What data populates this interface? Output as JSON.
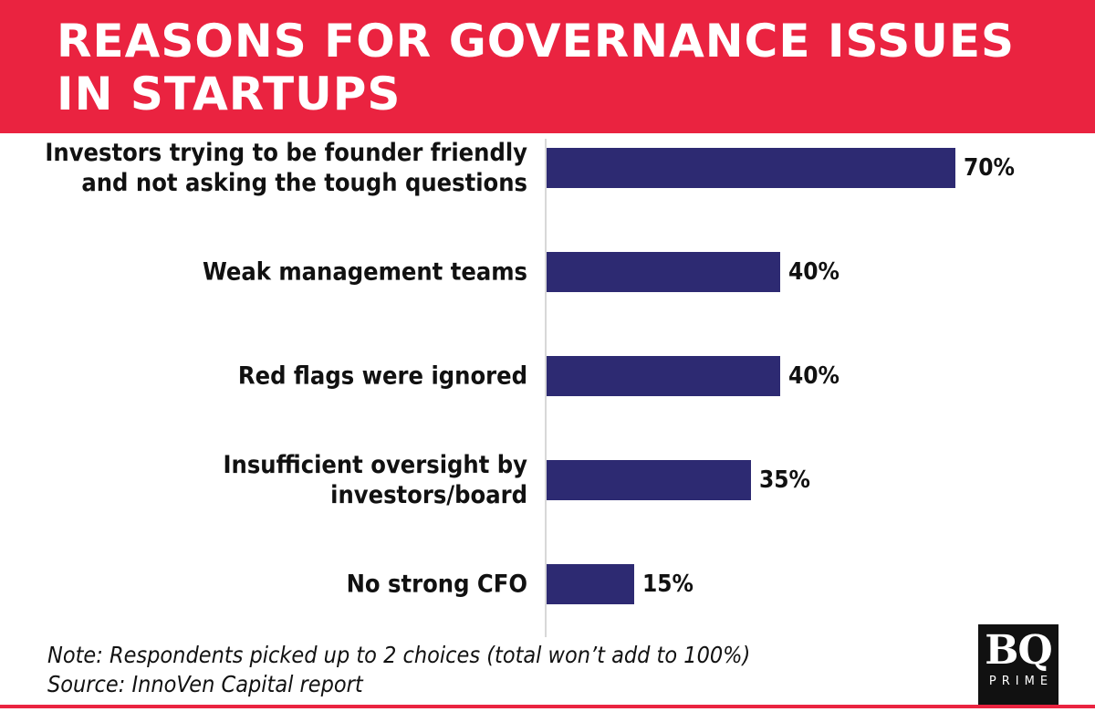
{
  "header": {
    "title": "REASONS FOR GOVERNANCE ISSUES IN STARTUPS"
  },
  "footer": {
    "note": "Note: Respondents picked up to 2 choices (total won’t add to 100%)",
    "source": "Source: InnoVen Capital report"
  },
  "logo": {
    "main": "BQ",
    "sub": "PRIME"
  },
  "colors": {
    "banner": "#ea2340",
    "bar": "#2d2a72",
    "axis": "#cccccc"
  },
  "chart_data": {
    "type": "bar",
    "orientation": "horizontal",
    "categories": [
      [
        "Investors trying to be founder friendly",
        "and not asking the tough questions"
      ],
      [
        "Weak management teams"
      ],
      [
        "Red flags were ignored"
      ],
      [
        "Insufficient oversight by",
        "investors/board"
      ],
      [
        "No strong CFO"
      ]
    ],
    "values": [
      70,
      40,
      40,
      35,
      15
    ],
    "value_labels": [
      "70%",
      "40%",
      "40%",
      "35%",
      "15%"
    ],
    "unit": "%",
    "xlim": [
      0,
      100
    ],
    "grid": false,
    "legend": "none"
  }
}
